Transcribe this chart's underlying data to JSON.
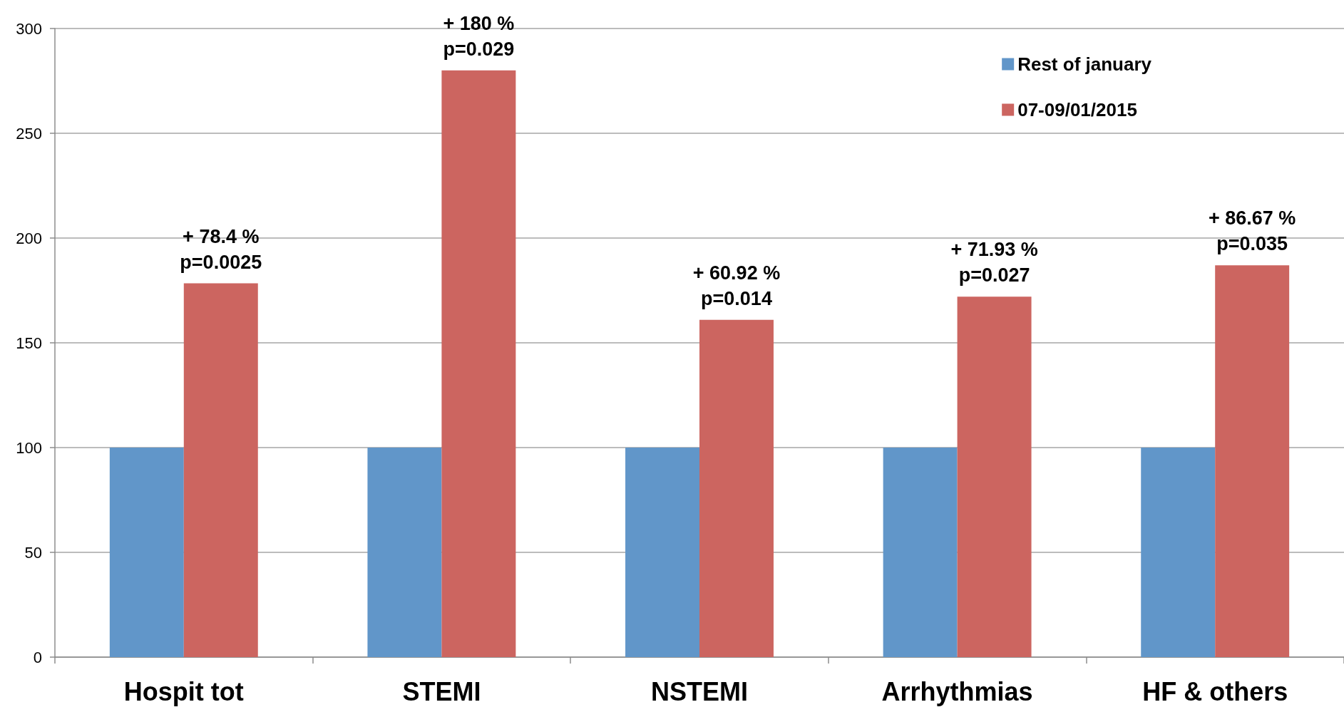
{
  "chart_data": {
    "type": "bar",
    "categories": [
      "Hospit tot",
      "STEMI",
      "NSTEMI",
      "Arrhythmias",
      "HF & others"
    ],
    "series": [
      {
        "name": "Rest of january",
        "color": "#6196c9",
        "values": [
          100,
          100,
          100,
          100,
          100
        ]
      },
      {
        "name": "07-09/01/2015",
        "color": "#cc6560",
        "values": [
          178.4,
          280,
          161,
          172,
          187
        ]
      }
    ],
    "ylim": [
      0,
      300
    ],
    "yticks": [
      0,
      50,
      100,
      150,
      200,
      250,
      300
    ],
    "annotations": [
      {
        "text": "+ 78.4 %\np=0.0025",
        "x": "Hospit tot",
        "y": 178.4
      },
      {
        "text": "+ 180 %\np=0.029",
        "x": "STEMI",
        "y": 280
      },
      {
        "text": "+ 60.92 %\np=0.014",
        "x": "NSTEMI",
        "y": 161
      },
      {
        "text": "+ 71.93 %\np=0.027",
        "x": "Arrhythmias",
        "y": 172
      },
      {
        "text": "+ 86.67 %\np=0.035",
        "x": "HF & others",
        "y": 187
      }
    ],
    "grid": "y",
    "legend": "top right"
  }
}
